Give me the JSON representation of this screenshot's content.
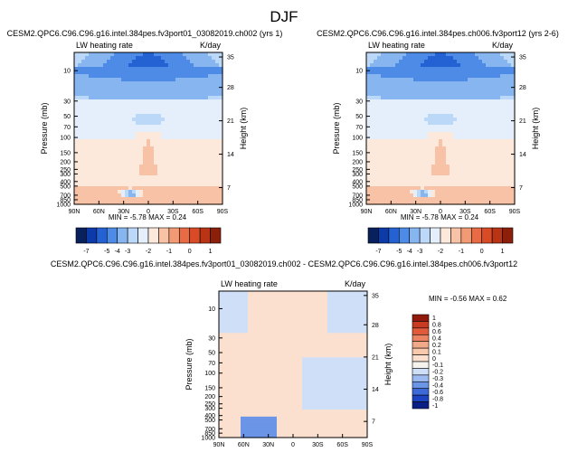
{
  "figure_title": "DJF",
  "palettes": {
    "abs": [
      "#08205c",
      "#0c3aa8",
      "#2462d4",
      "#4d8be6",
      "#86b5f0",
      "#bcd8f8",
      "#e4effb",
      "#fde8dc",
      "#f8c2a6",
      "#f19a74",
      "#e86b45",
      "#d94a26",
      "#b83415",
      "#8c1f0a"
    ],
    "diff": [
      "#0a1f86",
      "#1c44c2",
      "#3d6ad8",
      "#6b95e6",
      "#9dbbf0",
      "#cfdff8",
      "#f6f3ee",
      "#fbe0cf",
      "#f8c9ad",
      "#f2a98a",
      "#ea8462",
      "#e15a3b",
      "#c83a22",
      "#921a0c"
    ]
  },
  "chart_data": [
    {
      "type": "heatmap",
      "id": "panel1",
      "title": "CESM2.QPC6.C96.C96.g16.intel.384pes.fv3port01_03082019.ch002 (yrs 1)",
      "left_label": "LW heating rate",
      "right_label": "K/day",
      "ylabel": "Pressure (mb)",
      "ylabel_right": "Height (km)",
      "x_ticks": [
        "90N",
        "60N",
        "30N",
        "0",
        "30S",
        "60S",
        "90S"
      ],
      "y_ticks": [
        "10",
        "30",
        "50",
        "70",
        "100",
        "150",
        "200",
        "250",
        "300",
        "400",
        "500",
        "700",
        "850",
        "1000"
      ],
      "height_ticks": [
        "35",
        "28",
        "21",
        "14",
        "7"
      ],
      "stats": "MIN = -5.78  MAX =  0.24",
      "colorbar": {
        "labels": [
          "-7",
          "-5",
          "-4",
          "-3",
          "-2",
          "-1",
          "0",
          "1"
        ]
      }
    },
    {
      "type": "heatmap",
      "id": "panel2",
      "title": "CESM2.QPC6.C96.C96.g16.intel.384pes.ch006.fv3port12 (yrs 2-6)",
      "left_label": "LW heating rate",
      "right_label": "K/day",
      "ylabel": "Pressure (mb)",
      "ylabel_right": "Height (km)",
      "x_ticks": [
        "90N",
        "60N",
        "30N",
        "0",
        "30S",
        "60S",
        "90S"
      ],
      "y_ticks": [
        "10",
        "30",
        "50",
        "70",
        "100",
        "150",
        "200",
        "250",
        "300",
        "400",
        "500",
        "700",
        "850",
        "1000"
      ],
      "height_ticks": [
        "35",
        "28",
        "21",
        "14",
        "7"
      ],
      "stats": "MIN = -5.78  MAX =  0.24",
      "colorbar": {
        "labels": [
          "-7",
          "-5",
          "-4",
          "-3",
          "-2",
          "-1",
          "0",
          "1"
        ]
      }
    },
    {
      "type": "heatmap",
      "id": "panel3",
      "title": "CESM2.QPC6.C96.C96.g16.intel.384pes.fv3port01_03082019.ch002 - CESM2.QPC6.C96.C96.g16.intel.384pes.ch006.fv3port12",
      "left_label": "LW heating rate",
      "right_label": "K/day",
      "ylabel": "Pressure (mb)",
      "ylabel_right": "Height (km)",
      "x_ticks": [
        "90N",
        "60N",
        "30N",
        "0",
        "30S",
        "60S",
        "90S"
      ],
      "y_ticks": [
        "10",
        "30",
        "50",
        "70",
        "100",
        "150",
        "200",
        "250",
        "300",
        "400",
        "500",
        "700",
        "850",
        "1000"
      ],
      "height_ticks": [
        "35",
        "28",
        "21",
        "14",
        "7"
      ],
      "stats": "MIN = -0.56  MAX =  0.62",
      "colorbar": {
        "labels": [
          "1",
          "0.8",
          "0.6",
          "0.4",
          "0.2",
          "0.1",
          "0",
          "-0.1",
          "-0.2",
          "-0.3",
          "-0.4",
          "-0.6",
          "-0.8",
          "-1"
        ]
      }
    }
  ]
}
